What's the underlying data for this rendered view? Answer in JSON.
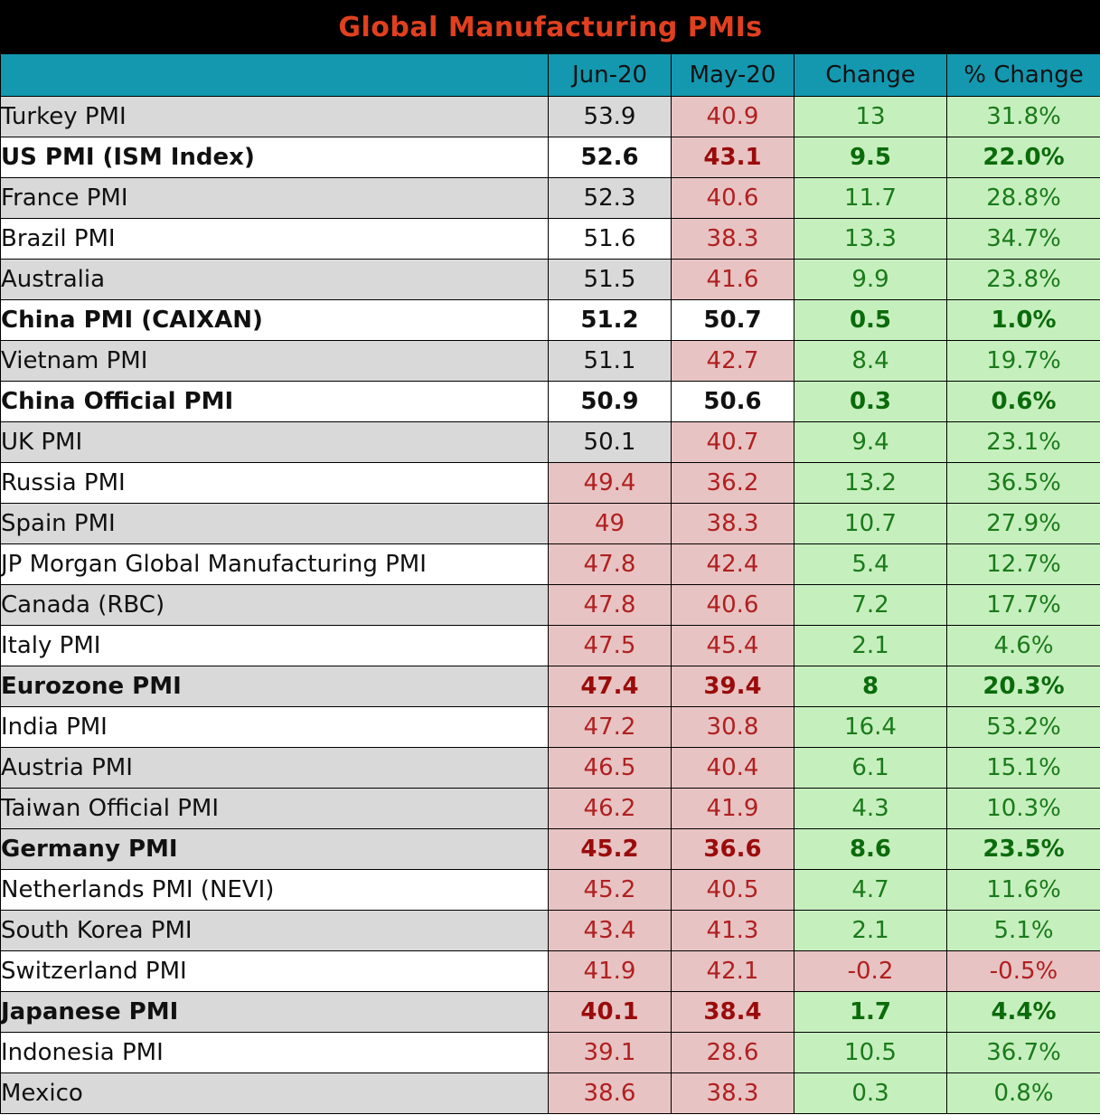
{
  "title": "Global Manufacturing PMIs",
  "columns": [
    "",
    "Jun-20",
    "May-20",
    "Change",
    "% Change"
  ],
  "colors": {
    "title_text": "#e0401f",
    "header_bg": "#1498b0",
    "positive_bg": "#c6efbe",
    "negative_bg": "#e8c3c3",
    "gray_row_bg": "#d9d9d9"
  },
  "rows": [
    {
      "name": "Turkey PMI",
      "jun": "53.9",
      "may": "40.9",
      "change": "13",
      "pct": "31.8%",
      "bold": false
    },
    {
      "name": "US PMI (ISM Index)",
      "jun": "52.6",
      "may": "43.1",
      "change": "9.5",
      "pct": "22.0%",
      "bold": true
    },
    {
      "name": "France PMI",
      "jun": "52.3",
      "may": "40.6",
      "change": "11.7",
      "pct": "28.8%",
      "bold": false
    },
    {
      "name": "Brazil PMI",
      "jun": "51.6",
      "may": "38.3",
      "change": "13.3",
      "pct": "34.7%",
      "bold": false
    },
    {
      "name": "Australia",
      "jun": "51.5",
      "may": "41.6",
      "change": "9.9",
      "pct": "23.8%",
      "bold": false
    },
    {
      "name": "China PMI (CAIXAN)",
      "jun": "51.2",
      "may": "50.7",
      "change": "0.5",
      "pct": "1.0%",
      "bold": true
    },
    {
      "name": "Vietnam PMI",
      "jun": "51.1",
      "may": "42.7",
      "change": "8.4",
      "pct": "19.7%",
      "bold": false
    },
    {
      "name": "China Official PMI",
      "jun": "50.9",
      "may": "50.6",
      "change": "0.3",
      "pct": "0.6%",
      "bold": true
    },
    {
      "name": "UK PMI",
      "jun": "50.1",
      "may": "40.7",
      "change": "9.4",
      "pct": "23.1%",
      "bold": false
    },
    {
      "name": "Russia PMI",
      "jun": "49.4",
      "may": "36.2",
      "change": "13.2",
      "pct": "36.5%",
      "bold": false
    },
    {
      "name": "Spain PMI",
      "jun": "49",
      "may": "38.3",
      "change": "10.7",
      "pct": "27.9%",
      "bold": false
    },
    {
      "name": "JP Morgan Global Manufacturing PMI",
      "jun": "47.8",
      "may": "42.4",
      "change": "5.4",
      "pct": "12.7%",
      "bold": false
    },
    {
      "name": "Canada (RBC)",
      "jun": "47.8",
      "may": "40.6",
      "change": "7.2",
      "pct": "17.7%",
      "bold": false
    },
    {
      "name": "Italy PMI",
      "jun": "47.5",
      "may": "45.4",
      "change": "2.1",
      "pct": "4.6%",
      "bold": false
    },
    {
      "name": "Eurozone PMI",
      "jun": "47.4",
      "may": "39.4",
      "change": "8",
      "pct": "20.3%",
      "bold": true
    },
    {
      "name": "India PMI",
      "jun": "47.2",
      "may": "30.8",
      "change": "16.4",
      "pct": "53.2%",
      "bold": false
    },
    {
      "name": "Austria PMI",
      "jun": "46.5",
      "may": "40.4",
      "change": "6.1",
      "pct": "15.1%",
      "bold": false
    },
    {
      "name": "Taiwan Official PMI",
      "jun": "46.2",
      "may": "41.9",
      "change": "4.3",
      "pct": "10.3%",
      "bold": false
    },
    {
      "name": "Germany PMI",
      "jun": "45.2",
      "may": "36.6",
      "change": "8.6",
      "pct": "23.5%",
      "bold": true
    },
    {
      "name": "Netherlands PMI (NEVI)",
      "jun": "45.2",
      "may": "40.5",
      "change": "4.7",
      "pct": "11.6%",
      "bold": false
    },
    {
      "name": "South Korea PMI",
      "jun": "43.4",
      "may": "41.3",
      "change": "2.1",
      "pct": "5.1%",
      "bold": false
    },
    {
      "name": "Switzerland PMI",
      "jun": "41.9",
      "may": "42.1",
      "change": "-0.2",
      "pct": "-0.5%",
      "bold": false
    },
    {
      "name": "Japanese PMI",
      "jun": "40.1",
      "may": "38.4",
      "change": "1.7",
      "pct": "4.4%",
      "bold": true
    },
    {
      "name": "Indonesia PMI",
      "jun": "39.1",
      "may": "28.6",
      "change": "10.5",
      "pct": "36.7%",
      "bold": false
    },
    {
      "name": "Mexico",
      "jun": "38.6",
      "may": "38.3",
      "change": "0.3",
      "pct": "0.8%",
      "bold": false
    }
  ]
}
